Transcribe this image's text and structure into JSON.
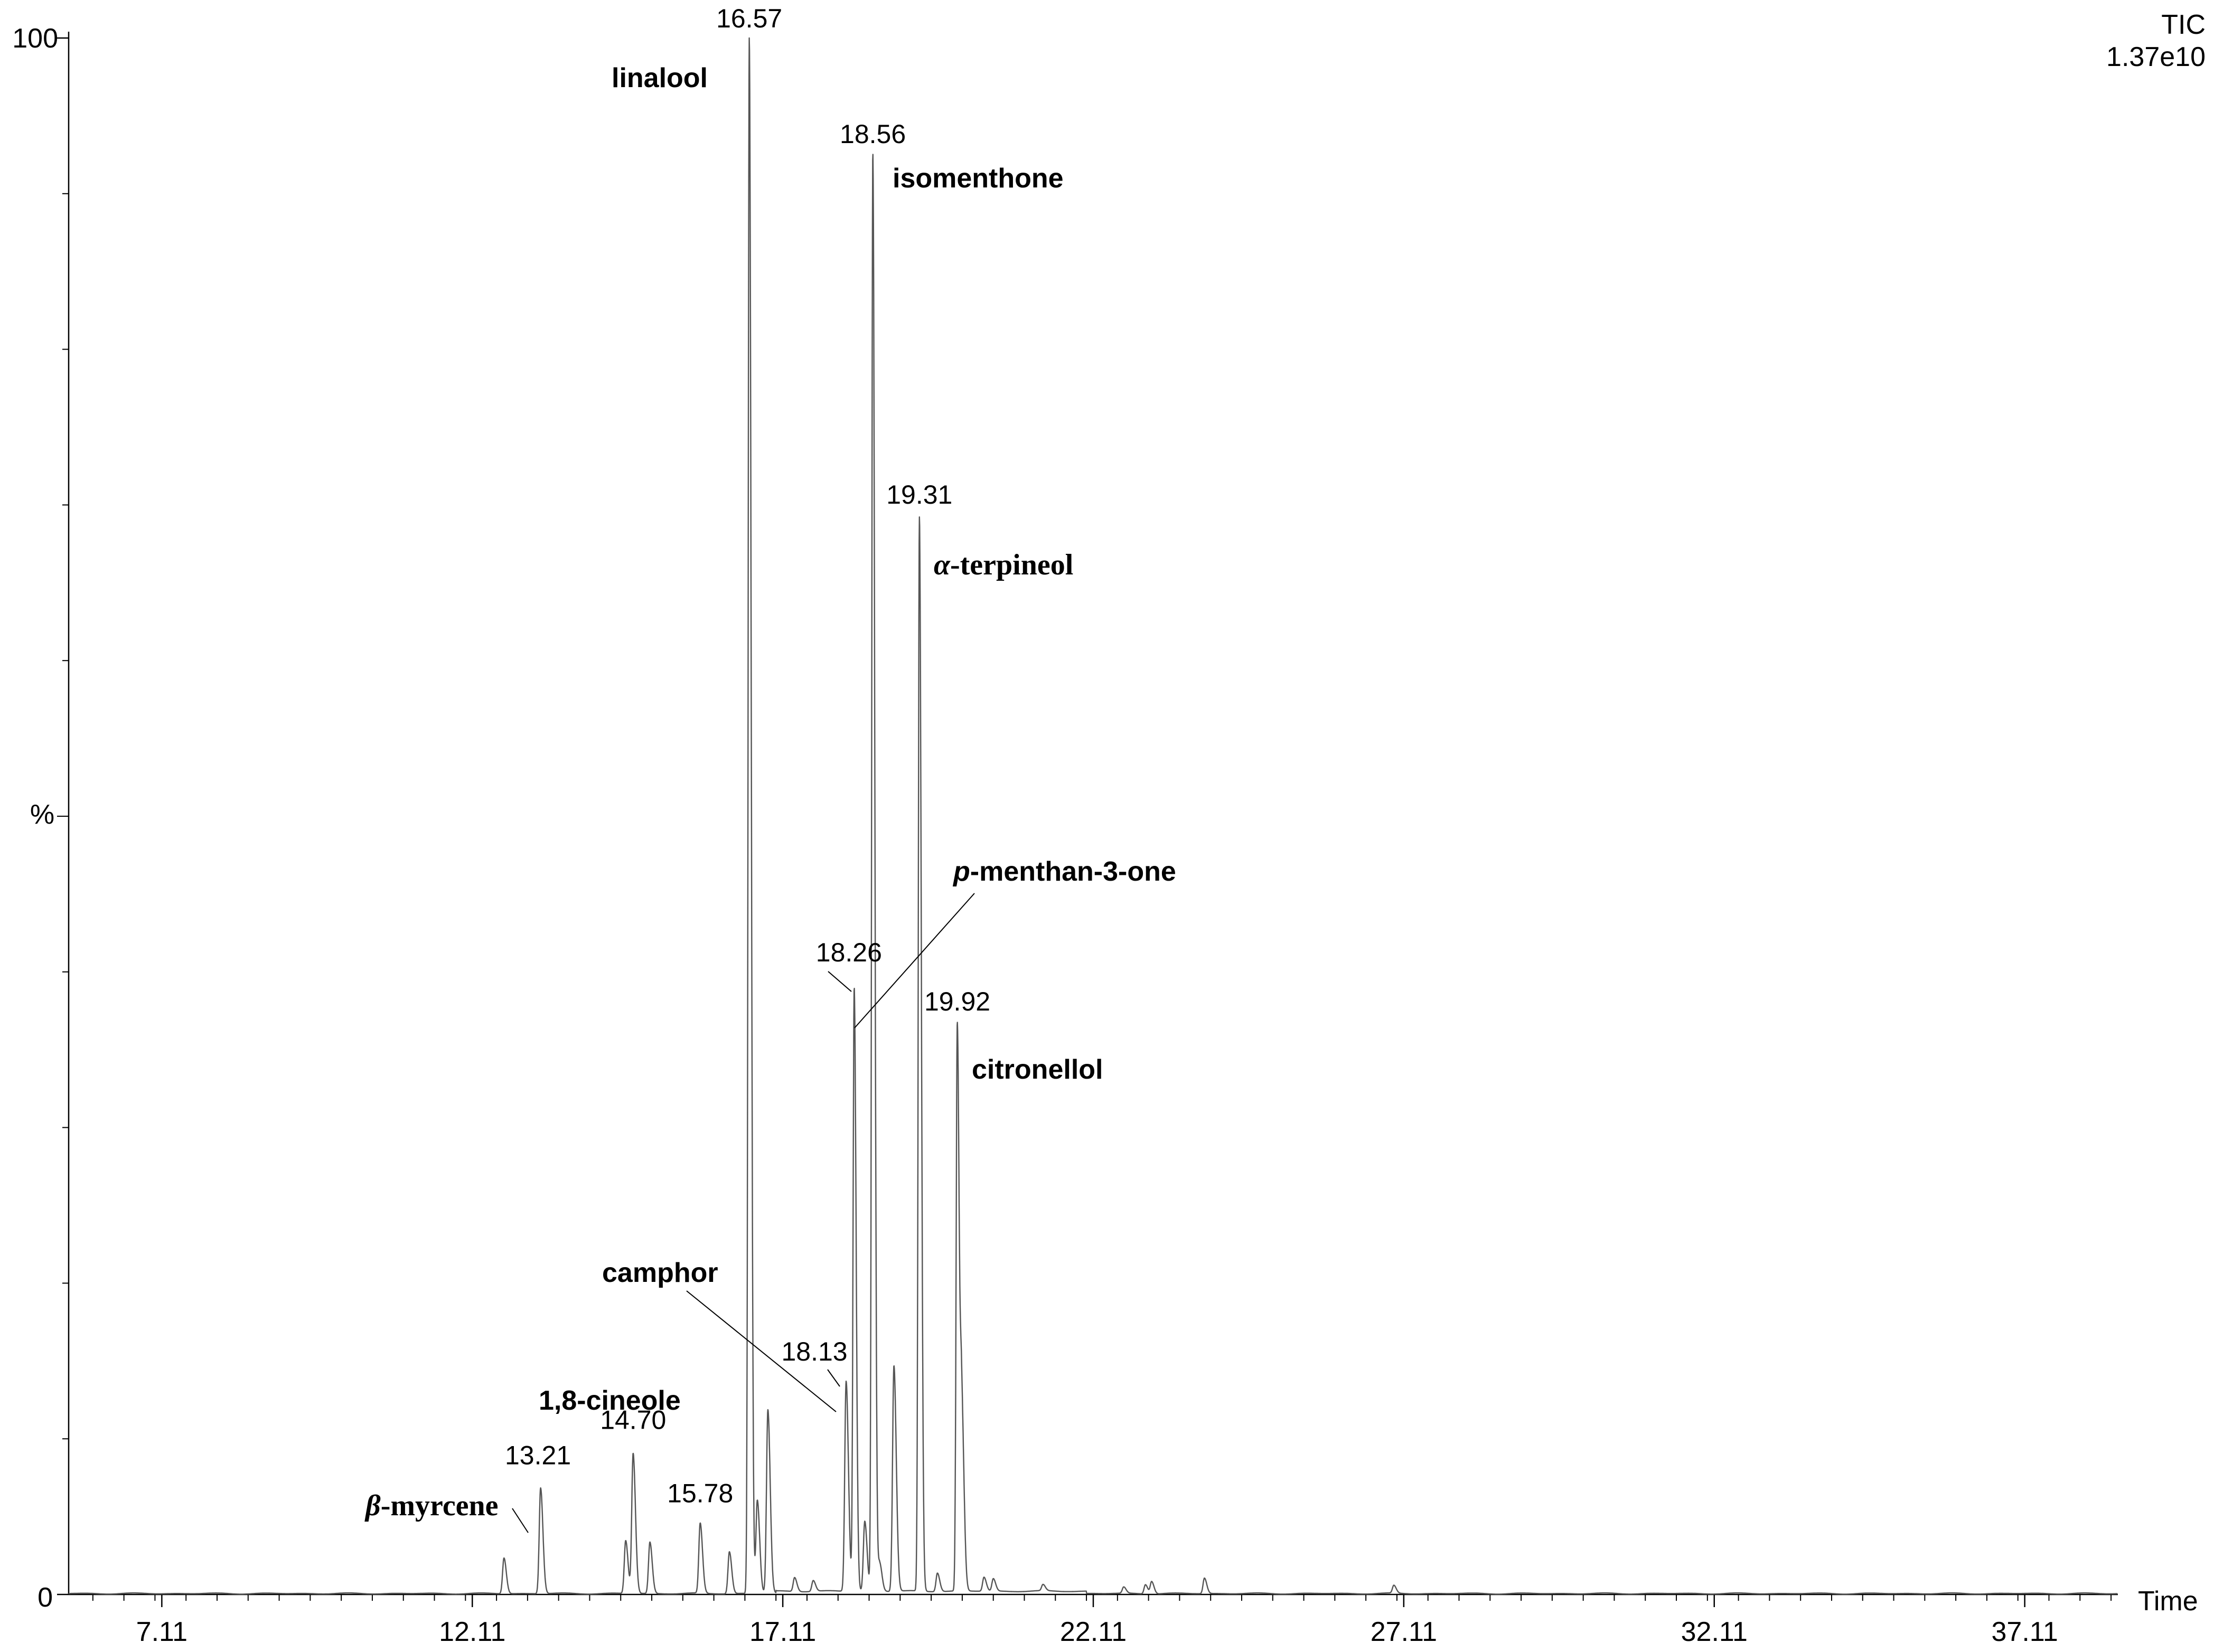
{
  "chart_data": {
    "type": "line",
    "title_lines": [
      "TIC",
      "1.37e10"
    ],
    "xlabel": "Time",
    "ylabel": "%",
    "xlim": [
      5.61,
      38.61
    ],
    "ylim": [
      0,
      100
    ],
    "x_ticks": [
      "7.11",
      "12.11",
      "17.11",
      "22.11",
      "27.11",
      "32.11",
      "37.11"
    ],
    "x_tick_values": [
      7.11,
      12.11,
      17.11,
      22.11,
      27.11,
      32.11,
      37.11
    ],
    "y_tick_labels": [
      "0",
      "100"
    ],
    "peaks": [
      {
        "rt": 12.62,
        "height": 2.3,
        "label": ""
      },
      {
        "rt": 13.21,
        "height": 6.8,
        "label": "13.21"
      },
      {
        "rt": 14.58,
        "height": 3.4,
        "label": ""
      },
      {
        "rt": 14.7,
        "height": 9.0,
        "label": "14.70"
      },
      {
        "rt": 14.97,
        "height": 3.3,
        "label": ""
      },
      {
        "rt": 15.78,
        "height": 4.5,
        "label": "15.78"
      },
      {
        "rt": 16.25,
        "height": 2.7,
        "label": ""
      },
      {
        "rt": 16.57,
        "height": 100,
        "label": "16.57"
      },
      {
        "rt": 16.7,
        "height": 6.0,
        "label": ""
      },
      {
        "rt": 16.87,
        "height": 11.8,
        "label": ""
      },
      {
        "rt": 17.3,
        "height": 0.9,
        "label": ""
      },
      {
        "rt": 17.6,
        "height": 0.7,
        "label": ""
      },
      {
        "rt": 18.13,
        "height": 13.5,
        "label": "18.13"
      },
      {
        "rt": 18.26,
        "height": 38.8,
        "label": "18.26"
      },
      {
        "rt": 18.43,
        "height": 4.5,
        "label": ""
      },
      {
        "rt": 18.56,
        "height": 92.5,
        "label": "18.56"
      },
      {
        "rt": 18.67,
        "height": 1.8,
        "label": ""
      },
      {
        "rt": 18.9,
        "height": 14.5,
        "label": ""
      },
      {
        "rt": 19.31,
        "height": 69.0,
        "label": "19.31"
      },
      {
        "rt": 19.6,
        "height": 1.2,
        "label": ""
      },
      {
        "rt": 19.92,
        "height": 36.5,
        "label": "19.92"
      },
      {
        "rt": 19.99,
        "height": 12.0,
        "label": ""
      },
      {
        "rt": 20.35,
        "height": 0.9,
        "label": ""
      },
      {
        "rt": 20.5,
        "height": 0.8,
        "label": ""
      },
      {
        "rt": 21.3,
        "height": 0.4,
        "label": ""
      },
      {
        "rt": 22.6,
        "height": 0.4,
        "label": ""
      },
      {
        "rt": 22.95,
        "height": 0.6,
        "label": ""
      },
      {
        "rt": 23.05,
        "height": 0.8,
        "label": ""
      },
      {
        "rt": 23.9,
        "height": 1.0,
        "label": ""
      },
      {
        "rt": 26.95,
        "height": 0.5,
        "label": ""
      }
    ],
    "compounds": [
      {
        "name": "linalool",
        "rt": 16.57
      },
      {
        "name": "isomenthone",
        "rt": 18.56
      },
      {
        "prefix": "α",
        "name": "-terpineol",
        "rt": 19.31
      },
      {
        "prefix": "p",
        "name": "-menthan-3-one",
        "rt": 18.26
      },
      {
        "name": "citronellol",
        "rt": 19.92
      },
      {
        "name": "camphor",
        "rt": 18.13
      },
      {
        "name": "1,8-cineole",
        "rt": 14.7
      },
      {
        "prefix": "β",
        "name": "-myrcene",
        "rt": 13.21
      }
    ]
  }
}
